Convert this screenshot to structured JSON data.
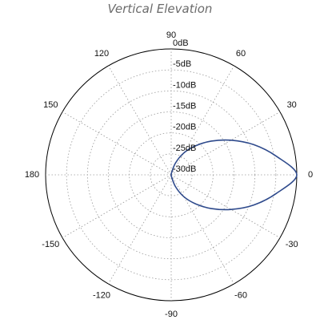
{
  "chart_data": {
    "type": "polar-line",
    "title": "Vertical Elevation",
    "angle_unit": "degrees",
    "angular_ticks": [
      "90",
      "60",
      "30",
      "0",
      "-30",
      "-60",
      "-90",
      "-120",
      "-150",
      "180",
      "150",
      "120"
    ],
    "angular_tick_values": [
      90,
      60,
      30,
      0,
      -30,
      -60,
      -90,
      -120,
      -150,
      180,
      150,
      120
    ],
    "radial_unit": "dB",
    "radial_range": [
      -30,
      0
    ],
    "radial_ticks": [
      "0dB",
      "-5dB",
      "-10dB",
      "-15dB",
      "-20dB",
      "-25dB",
      "-30dB"
    ],
    "radial_tick_values": [
      0,
      -5,
      -10,
      -15,
      -20,
      -25,
      -30
    ],
    "grid": true,
    "grid_style": "dotted",
    "series": [
      {
        "color": "#2e4a8c",
        "angles": [
          -90,
          -80,
          -70,
          -60,
          -50,
          -40,
          -30,
          -20,
          -10,
          0,
          10,
          20,
          30,
          40,
          50,
          60,
          70,
          80,
          90
        ],
        "values": [
          -30,
          -29.5,
          -27.0,
          -24.0,
          -21.0,
          -17.5,
          -13.5,
          -9.0,
          -4.5,
          0,
          -4.5,
          -9.0,
          -13.5,
          -17.5,
          -21.0,
          -24.0,
          -27.0,
          -29.5,
          -30
        ]
      }
    ]
  },
  "colors": {
    "axis": "#000000",
    "grid": "#9a9a9a",
    "series": "#2e4a8c"
  }
}
